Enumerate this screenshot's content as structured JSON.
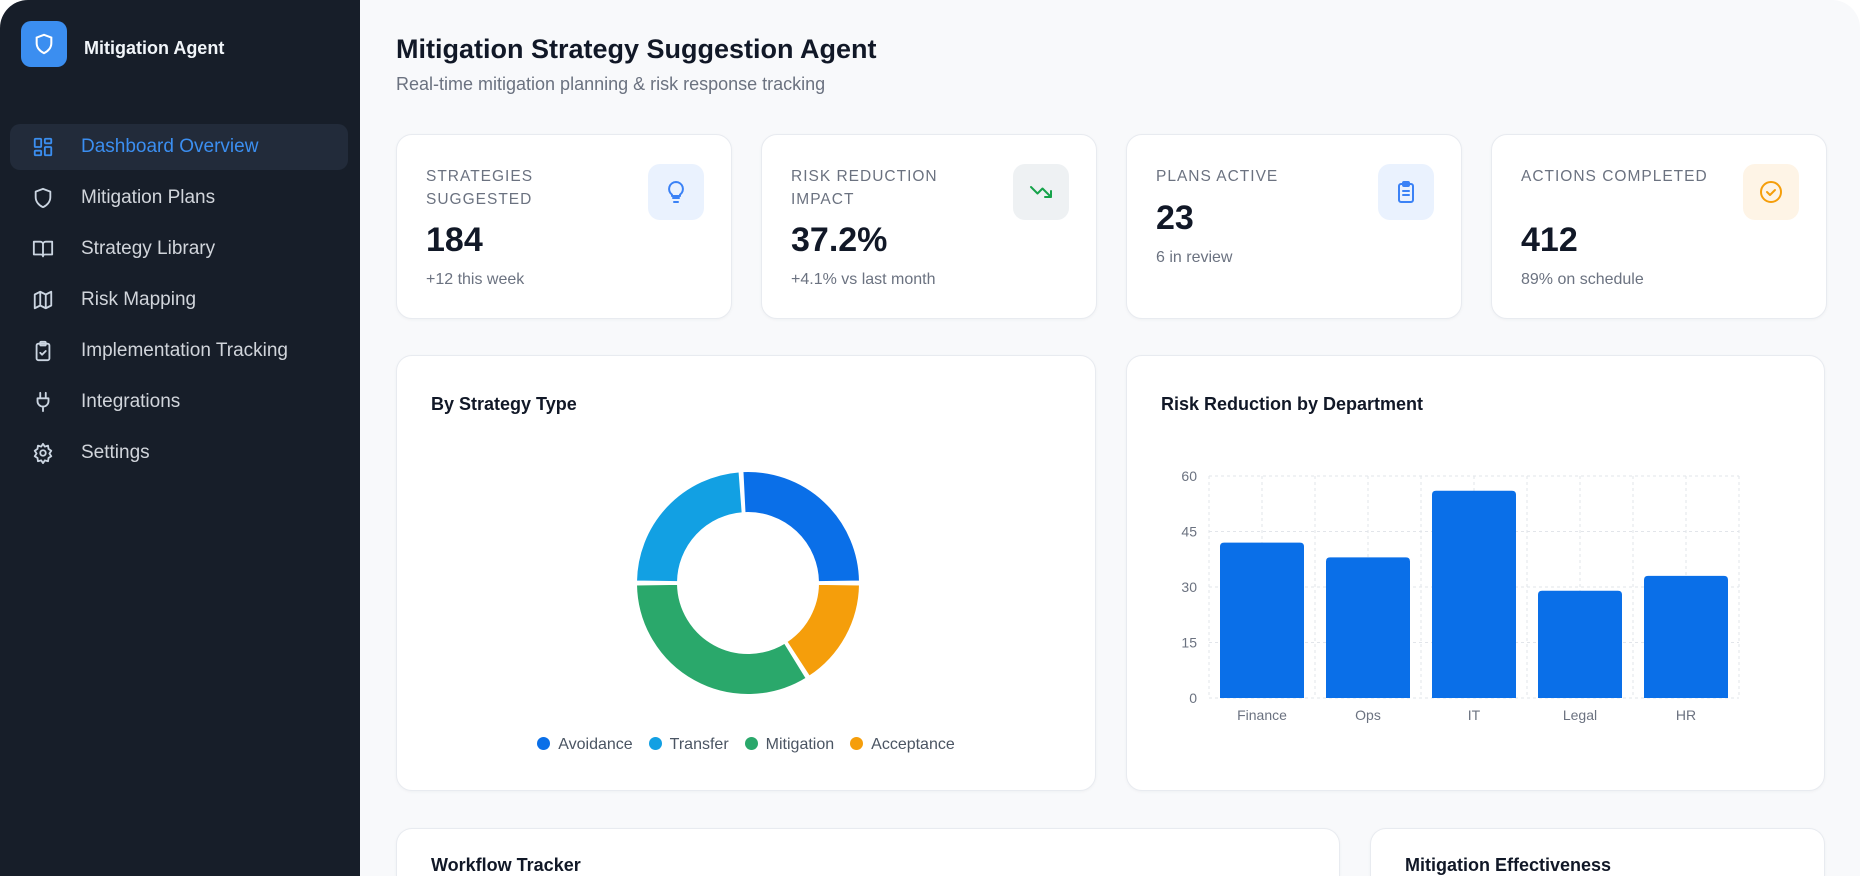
{
  "sidebar": {
    "brand": "Mitigation Agent",
    "items": [
      {
        "label": "Dashboard Overview",
        "icon": "dashboard-icon",
        "active": true
      },
      {
        "label": "Mitigation Plans",
        "icon": "shield-icon"
      },
      {
        "label": "Strategy Library",
        "icon": "book-icon"
      },
      {
        "label": "Risk Mapping",
        "icon": "map-icon"
      },
      {
        "label": "Implementation Tracking",
        "icon": "clipboard-check-icon"
      },
      {
        "label": "Integrations",
        "icon": "plug-icon"
      },
      {
        "label": "Settings",
        "icon": "gear-icon"
      }
    ]
  },
  "header": {
    "title": "Mitigation Strategy Suggestion Agent",
    "subtitle": "Real-time mitigation planning & risk response tracking"
  },
  "stats": [
    {
      "label": "Strategies Suggested",
      "value": "184",
      "sub": "+12 this week",
      "icon": "lightbulb-icon",
      "color": "#3b82f6"
    },
    {
      "label": "Risk Reduction Impact",
      "value": "37.2%",
      "sub": "+4.1% vs last month",
      "icon": "trending-down-icon",
      "color": "#16a34a"
    },
    {
      "label": "Plans Active",
      "value": "23",
      "sub": "6 in review",
      "icon": "clipboard-icon",
      "color": "#3b82f6"
    },
    {
      "label": "Actions Completed",
      "value": "412",
      "sub": "89% on schedule",
      "icon": "check-circle-icon",
      "color": "#f59e0b"
    }
  ],
  "chart_data": [
    {
      "type": "pie",
      "title": "By Strategy Type",
      "categories": [
        "Avoidance",
        "Transfer",
        "Mitigation",
        "Acceptance"
      ],
      "values": [
        26,
        24,
        34,
        16
      ],
      "colors": [
        "#0a6fe8",
        "#12a0e3",
        "#2aa86b",
        "#f59e0b"
      ],
      "legend": "bottom"
    },
    {
      "type": "bar",
      "title": "Risk Reduction by Department",
      "categories": [
        "Finance",
        "Ops",
        "IT",
        "Legal",
        "HR"
      ],
      "values": [
        42,
        38,
        56,
        29,
        33
      ],
      "ylim": [
        0,
        60
      ],
      "yticks": [
        0,
        15,
        30,
        45,
        60
      ],
      "grid": true,
      "color": "#0a6fe8"
    }
  ],
  "bottom": {
    "workflow_title": "Workflow Tracker",
    "effectiveness_title": "Mitigation Effectiveness"
  }
}
